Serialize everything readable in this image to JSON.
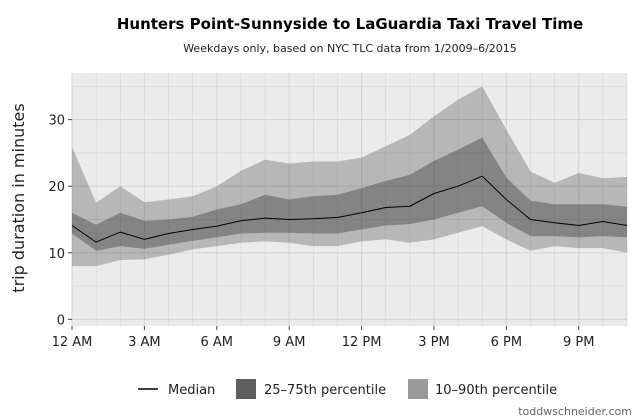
{
  "chart_data": {
    "type": "area",
    "title": "Hunters Point-Sunnyside to LaGuardia Taxi Travel Time",
    "subtitle": "Weekdays only, based on NYC TLC data from 1/2009–6/2015",
    "xlabel": "",
    "ylabel": "trip duration in minutes",
    "x_tick_labels": [
      "12 AM",
      "3 AM",
      "6 AM",
      "9 AM",
      "12 PM",
      "3 PM",
      "6 PM",
      "9 PM"
    ],
    "x_tick_hours": [
      0,
      3,
      6,
      9,
      12,
      15,
      18,
      21
    ],
    "y_ticks": [
      0,
      10,
      20,
      30
    ],
    "xlim": [
      0,
      23
    ],
    "ylim": [
      -1,
      37
    ],
    "grid": true,
    "legend_position": "bottom",
    "x": [
      0,
      1,
      2,
      3,
      4,
      5,
      6,
      7,
      8,
      9,
      10,
      11,
      12,
      13,
      14,
      15,
      16,
      17,
      18,
      19,
      20,
      21,
      22,
      23
    ],
    "series": [
      {
        "name": "Median",
        "values": [
          14.1,
          11.6,
          13.1,
          12.0,
          12.9,
          13.5,
          14.0,
          14.8,
          15.2,
          15.0,
          15.1,
          15.3,
          16.0,
          16.8,
          17.0,
          18.9,
          20.0,
          21.5,
          18.0,
          15.0,
          14.5,
          14.1,
          14.7,
          14.1
        ]
      },
      {
        "name": "25–75th percentile",
        "lower": [
          12.9,
          10.3,
          11.0,
          10.6,
          11.2,
          11.8,
          12.3,
          12.9,
          13.0,
          13.0,
          12.9,
          12.9,
          13.5,
          14.1,
          14.3,
          15.0,
          16.0,
          17.0,
          14.5,
          12.5,
          12.5,
          12.3,
          12.5,
          12.3
        ],
        "upper": [
          16.0,
          14.2,
          16.0,
          14.8,
          15.0,
          15.4,
          16.5,
          17.3,
          18.7,
          18.0,
          18.5,
          18.7,
          19.7,
          20.8,
          21.7,
          23.8,
          25.5,
          27.3,
          21.3,
          17.8,
          17.3,
          17.3,
          17.3,
          16.9
        ]
      },
      {
        "name": "10–90th percentile",
        "lower": [
          8.0,
          8.0,
          8.9,
          9.0,
          9.7,
          10.5,
          11.0,
          11.5,
          11.7,
          11.5,
          11.0,
          11.0,
          11.7,
          12.0,
          11.5,
          12.0,
          13.0,
          14.0,
          12.0,
          10.3,
          11.0,
          10.7,
          10.7,
          10.0
        ],
        "upper": [
          25.9,
          17.5,
          20.0,
          17.6,
          18.0,
          18.5,
          20.0,
          22.3,
          24.0,
          23.4,
          23.7,
          23.7,
          24.3,
          26.0,
          27.7,
          30.5,
          33.0,
          35.0,
          28.5,
          22.2,
          20.5,
          22.0,
          21.2,
          21.4
        ]
      }
    ],
    "colors": {
      "panel": "#ebebeb",
      "grid": "#d6d6d6",
      "band_outer": "#bdbdbd",
      "band_inner": "#8f8f8f",
      "median": "#000000"
    }
  },
  "legend": {
    "median_label": "Median",
    "iqr_label": "25–75th percentile",
    "outer_label": "10–90th percentile"
  },
  "credit": "toddwschneider.com"
}
